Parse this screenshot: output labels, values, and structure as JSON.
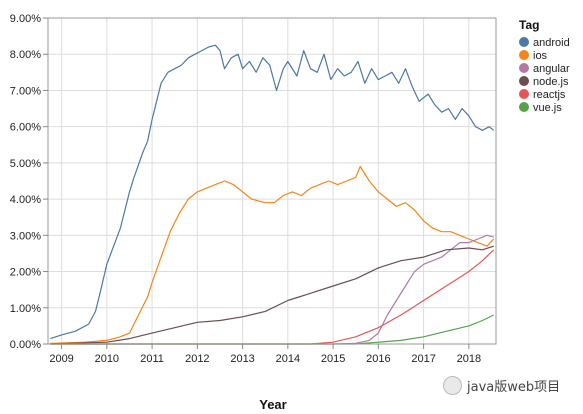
{
  "chart_data": {
    "type": "line",
    "xlabel": "Year",
    "ylabel": "",
    "xlim": [
      2008.7,
      2018.6
    ],
    "ylim": [
      0,
      9
    ],
    "x_ticks": [
      2009,
      2010,
      2011,
      2012,
      2013,
      2014,
      2015,
      2016,
      2017,
      2018
    ],
    "x_tick_labels": [
      "2009",
      "2010",
      "2011",
      "2012",
      "2013",
      "2014",
      "2015",
      "2016",
      "2017",
      "2018"
    ],
    "y_ticks": [
      0,
      1,
      2,
      3,
      4,
      5,
      6,
      7,
      8,
      9
    ],
    "y_tick_labels": [
      "0.00%",
      "1.00%",
      "2.00%",
      "3.00%",
      "4.00%",
      "5.00%",
      "6.00%",
      "7.00%",
      "8.00%",
      "9.00%"
    ],
    "grid": true,
    "legend": {
      "title": "Tag",
      "placement": "right"
    },
    "series": [
      {
        "name": "android",
        "color": "#4c78a8",
        "x": [
          2008.75,
          2009.0,
          2009.3,
          2009.6,
          2009.75,
          2009.85,
          2010.0,
          2010.15,
          2010.3,
          2010.5,
          2010.6,
          2010.8,
          2010.9,
          2011.0,
          2011.1,
          2011.2,
          2011.35,
          2011.5,
          2011.65,
          2011.8,
          2011.95,
          2012.1,
          2012.25,
          2012.4,
          2012.5,
          2012.6,
          2012.75,
          2012.9,
          2013.0,
          2013.15,
          2013.3,
          2013.45,
          2013.6,
          2013.75,
          2013.9,
          2014.0,
          2014.2,
          2014.35,
          2014.5,
          2014.65,
          2014.8,
          2014.95,
          2015.1,
          2015.25,
          2015.4,
          2015.55,
          2015.7,
          2015.85,
          2016.0,
          2016.15,
          2016.3,
          2016.45,
          2016.6,
          2016.75,
          2016.9,
          2017.1,
          2017.25,
          2017.4,
          2017.55,
          2017.7,
          2017.85,
          2018.0,
          2018.15,
          2018.3,
          2018.45,
          2018.55
        ],
        "values": [
          0.15,
          0.25,
          0.35,
          0.55,
          0.9,
          1.4,
          2.2,
          2.7,
          3.2,
          4.2,
          4.6,
          5.3,
          5.6,
          6.2,
          6.7,
          7.2,
          7.5,
          7.6,
          7.7,
          7.9,
          8.0,
          8.1,
          8.2,
          8.25,
          8.1,
          7.6,
          7.9,
          8.0,
          7.6,
          7.8,
          7.5,
          7.9,
          7.7,
          7.0,
          7.6,
          7.8,
          7.4,
          8.1,
          7.6,
          7.5,
          8.0,
          7.3,
          7.6,
          7.4,
          7.5,
          7.8,
          7.2,
          7.6,
          7.3,
          7.4,
          7.5,
          7.2,
          7.6,
          7.1,
          6.7,
          6.9,
          6.6,
          6.4,
          6.5,
          6.2,
          6.5,
          6.3,
          6.0,
          5.9,
          6.0,
          5.9
        ]
      },
      {
        "name": "ios",
        "color": "#f58518",
        "x": [
          2008.75,
          2009.5,
          2010.0,
          2010.3,
          2010.5,
          2010.7,
          2010.9,
          2011.0,
          2011.2,
          2011.4,
          2011.6,
          2011.8,
          2012.0,
          2012.2,
          2012.4,
          2012.6,
          2012.8,
          2013.0,
          2013.2,
          2013.5,
          2013.7,
          2013.9,
          2014.1,
          2014.3,
          2014.5,
          2014.7,
          2014.9,
          2015.1,
          2015.3,
          2015.5,
          2015.6,
          2015.8,
          2016.0,
          2016.2,
          2016.4,
          2016.6,
          2016.8,
          2017.0,
          2017.2,
          2017.4,
          2017.6,
          2017.8,
          2018.0,
          2018.2,
          2018.4,
          2018.55
        ],
        "values": [
          0.02,
          0.05,
          0.1,
          0.2,
          0.3,
          0.8,
          1.3,
          1.7,
          2.4,
          3.1,
          3.6,
          4.0,
          4.2,
          4.3,
          4.4,
          4.5,
          4.4,
          4.2,
          4.0,
          3.9,
          3.9,
          4.1,
          4.2,
          4.1,
          4.3,
          4.4,
          4.5,
          4.4,
          4.5,
          4.6,
          4.9,
          4.5,
          4.2,
          4.0,
          3.8,
          3.9,
          3.7,
          3.4,
          3.2,
          3.1,
          3.1,
          3.0,
          2.9,
          2.8,
          2.7,
          2.9
        ]
      },
      {
        "name": "angular",
        "color": "#b279a2",
        "x": [
          2008.75,
          2015.0,
          2015.5,
          2015.8,
          2016.0,
          2016.2,
          2016.4,
          2016.6,
          2016.8,
          2017.0,
          2017.2,
          2017.4,
          2017.6,
          2017.8,
          2018.0,
          2018.2,
          2018.4,
          2018.55
        ],
        "values": [
          0.0,
          0.0,
          0.02,
          0.1,
          0.3,
          0.8,
          1.2,
          1.6,
          2.0,
          2.2,
          2.3,
          2.4,
          2.6,
          2.8,
          2.8,
          2.9,
          3.0,
          2.95
        ]
      },
      {
        "name": "node.js",
        "color": "#6b4e4e",
        "x": [
          2008.75,
          2010.0,
          2010.5,
          2011.0,
          2011.5,
          2012.0,
          2012.5,
          2013.0,
          2013.5,
          2014.0,
          2014.5,
          2015.0,
          2015.5,
          2016.0,
          2016.5,
          2017.0,
          2017.5,
          2018.0,
          2018.3,
          2018.55
        ],
        "values": [
          0.0,
          0.05,
          0.15,
          0.3,
          0.45,
          0.6,
          0.65,
          0.75,
          0.9,
          1.2,
          1.4,
          1.6,
          1.8,
          2.1,
          2.3,
          2.4,
          2.6,
          2.65,
          2.6,
          2.7
        ]
      },
      {
        "name": "reactjs",
        "color": "#e45756",
        "x": [
          2008.75,
          2014.5,
          2015.0,
          2015.5,
          2016.0,
          2016.5,
          2017.0,
          2017.5,
          2018.0,
          2018.3,
          2018.55
        ],
        "values": [
          0.0,
          0.0,
          0.05,
          0.2,
          0.45,
          0.8,
          1.2,
          1.6,
          2.0,
          2.3,
          2.6
        ]
      },
      {
        "name": "vue.js",
        "color": "#54a24b",
        "x": [
          2008.75,
          2015.5,
          2016.0,
          2016.5,
          2017.0,
          2017.5,
          2018.0,
          2018.3,
          2018.55
        ],
        "values": [
          0.0,
          0.0,
          0.05,
          0.1,
          0.2,
          0.35,
          0.5,
          0.65,
          0.8
        ]
      }
    ]
  },
  "watermark": {
    "text": "java版web项目"
  }
}
